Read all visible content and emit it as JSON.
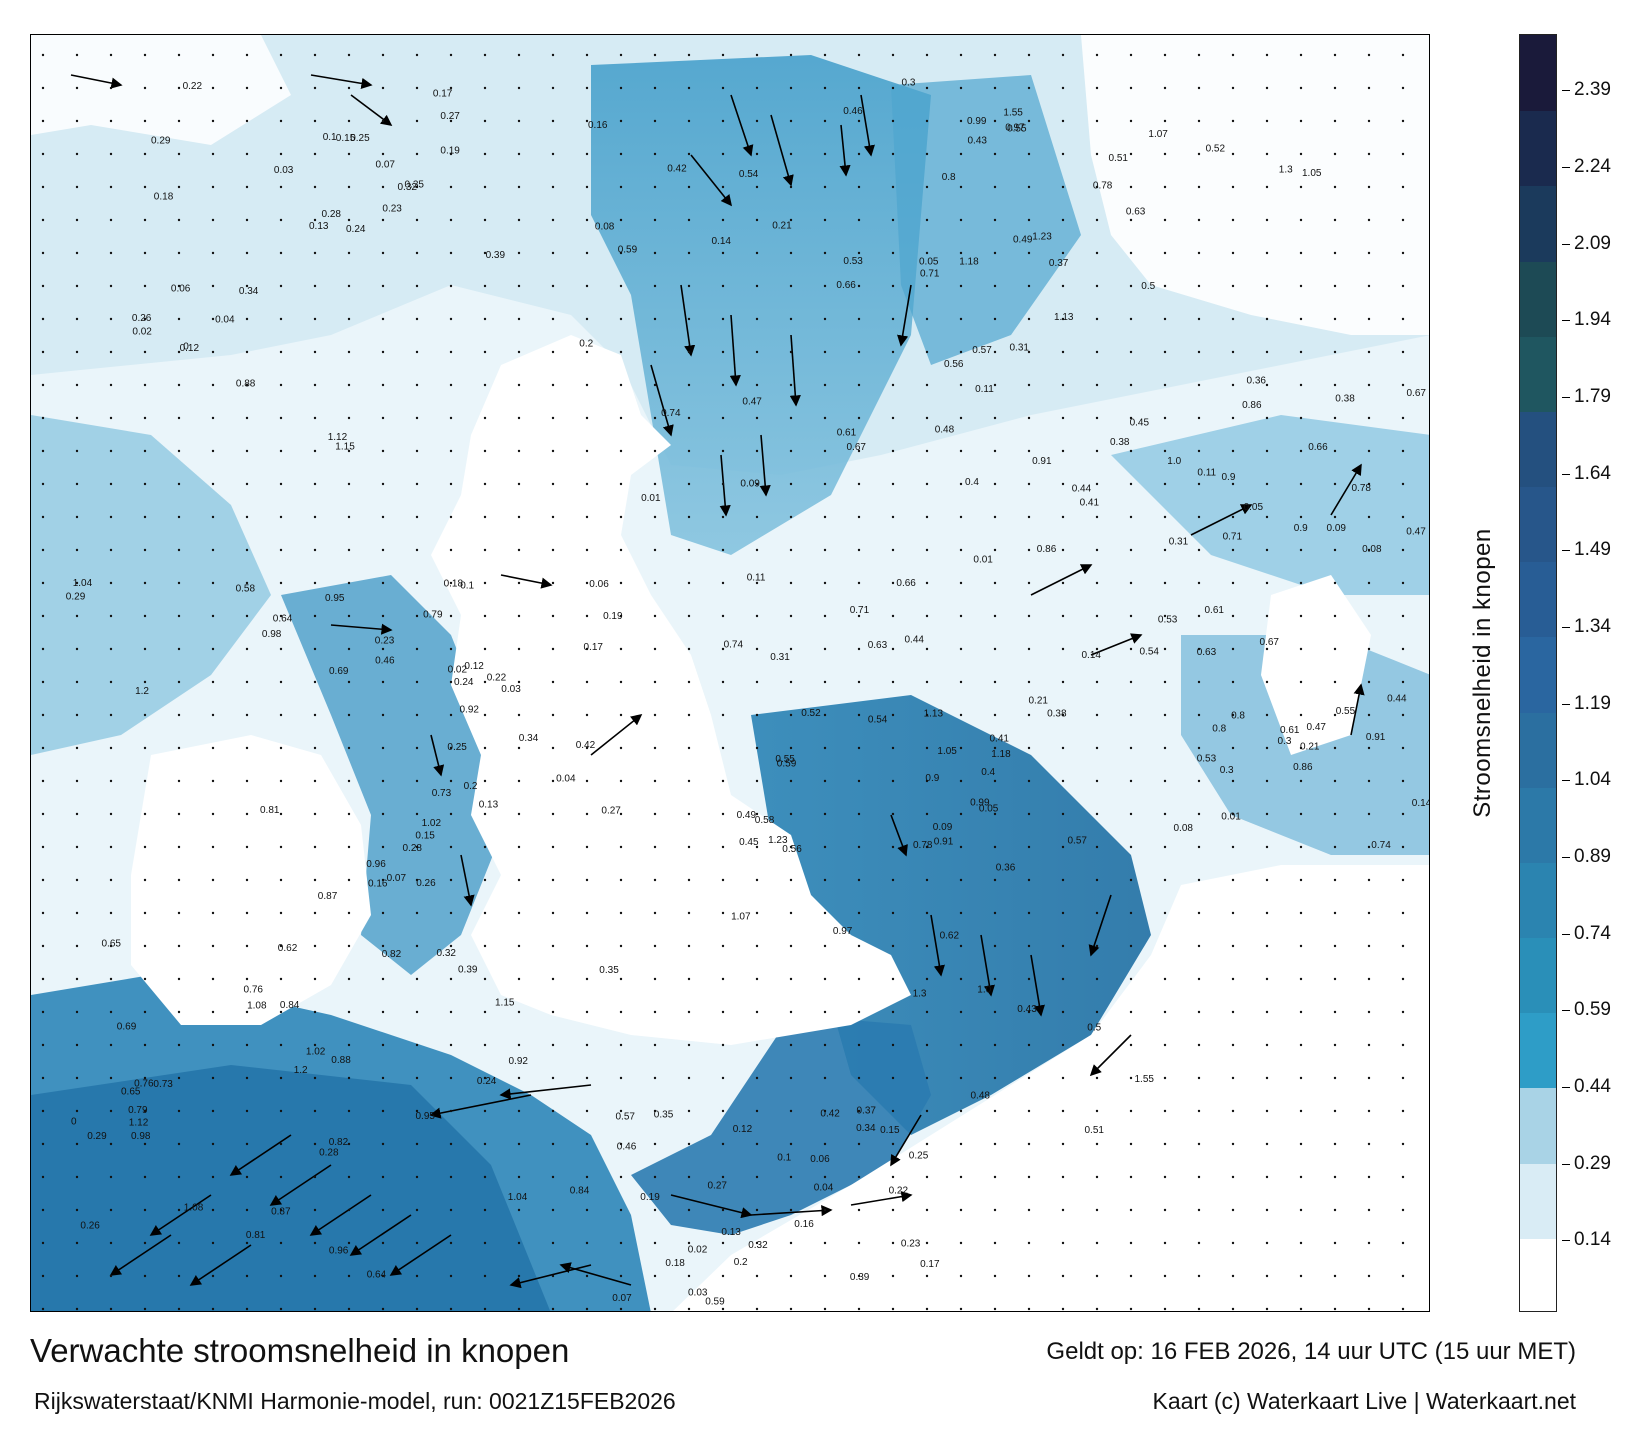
{
  "title": "Verwachte stroomsnelheid in knopen",
  "subtitle": "Rijkswaterstaat/KNMI Harmonie-model, run: 0021Z15FEB2026",
  "valid_time": "Geldt op: 16 FEB 2026, 14 uur UTC (15 uur MET)",
  "credits": "Kaart (c) Waterkaart Live | Waterkaart.net",
  "colorbar": {
    "title": "Stroomsnelheid in knopen",
    "unit": "knopen",
    "min": 0,
    "max": 2.5,
    "tick_labels": [
      "0.14",
      "0.29",
      "0.44",
      "0.59",
      "0.74",
      "0.89",
      "1.04",
      "1.19",
      "1.34",
      "1.49",
      "1.64",
      "1.79",
      "1.94",
      "2.09",
      "2.24",
      "2.39"
    ],
    "tick_values": [
      0.14,
      0.29,
      0.44,
      0.59,
      0.74,
      0.89,
      1.04,
      1.19,
      1.34,
      1.49,
      1.64,
      1.79,
      1.94,
      2.09,
      2.24,
      2.39
    ],
    "colors": [
      "#ffffff",
      "#d9ecf5",
      "#a9d3e6",
      "#2e9dc7",
      "#2a8fb8",
      "#2b84b0",
      "#2c79a8",
      "#2b6fa0",
      "#2a66a0",
      "#285d95",
      "#27568a",
      "#24507f",
      "#1f5660",
      "#1d4a55",
      "#1b3a5c",
      "#1a2a4e",
      "#1a1a3a"
    ],
    "colors_note": "colour bins from bottom to top"
  },
  "map": {
    "land_color": "#ffffff",
    "water_low_color": "#e6f3f9",
    "water_mid_color": "#5fb3d6",
    "water_high_color": "#1f6fa3",
    "arrow_color": "#000000",
    "sample_values": [
      {
        "v": "0.24"
      },
      {
        "v": "0.29"
      },
      {
        "v": "0.28"
      },
      {
        "v": "0.26"
      },
      {
        "v": "0.32"
      },
      {
        "v": "0.34"
      },
      {
        "v": "0.17"
      },
      {
        "v": "0.25"
      },
      {
        "v": "0.27"
      },
      {
        "v": "0.23"
      },
      {
        "v": "0.22"
      },
      {
        "v": "0.2"
      },
      {
        "v": "0.18"
      },
      {
        "v": "0.16"
      },
      {
        "v": "0.13"
      },
      {
        "v": "0.19"
      },
      {
        "v": "0.12"
      },
      {
        "v": "0.1"
      },
      {
        "v": "0.07"
      },
      {
        "v": "0.06"
      },
      {
        "v": "0.03"
      },
      {
        "v": "0.02"
      },
      {
        "v": "0.04"
      },
      {
        "v": "0.15"
      },
      {
        "v": "0.35"
      },
      {
        "v": "0.39"
      },
      {
        "v": "0.42"
      },
      {
        "v": "0.46"
      },
      {
        "v": "0.59"
      },
      {
        "v": "0.57"
      },
      {
        "v": "0.63"
      },
      {
        "v": "0.66"
      },
      {
        "v": "0.61"
      },
      {
        "v": "0.53"
      },
      {
        "v": "0.54"
      },
      {
        "v": "0.55"
      },
      {
        "v": "0.47"
      },
      {
        "v": "0.44"
      },
      {
        "v": "0.38"
      },
      {
        "v": "0.31"
      },
      {
        "v": "0.3"
      },
      {
        "v": "0.21"
      },
      {
        "v": "0.14"
      },
      {
        "v": "0.11"
      },
      {
        "v": "0.09"
      },
      {
        "v": "0.08"
      },
      {
        "v": "0.05"
      },
      {
        "v": "0.01"
      },
      {
        "v": "0.67"
      },
      {
        "v": "0.71"
      },
      {
        "v": "0.74"
      },
      {
        "v": "0.78"
      },
      {
        "v": "0.8"
      },
      {
        "v": "0.86"
      },
      {
        "v": "0.9"
      },
      {
        "v": "0.91"
      },
      {
        "v": "0.97"
      },
      {
        "v": "0.99"
      },
      {
        "v": "1.0"
      },
      {
        "v": "1.05"
      },
      {
        "v": "1.07"
      },
      {
        "v": "1.13"
      },
      {
        "v": "1.18"
      },
      {
        "v": "1.23"
      },
      {
        "v": "1.3"
      },
      {
        "v": "1.55"
      },
      {
        "v": "0.52"
      },
      {
        "v": "0.51"
      },
      {
        "v": "0.5"
      },
      {
        "v": "0.48"
      },
      {
        "v": "0.45"
      },
      {
        "v": "0.41"
      },
      {
        "v": "0.36"
      },
      {
        "v": "0.37"
      },
      {
        "v": "0.4"
      },
      {
        "v": "0.43"
      },
      {
        "v": "0.49"
      },
      {
        "v": "0.56"
      },
      {
        "v": "0.58"
      },
      {
        "v": "0.62"
      },
      {
        "v": "0.64"
      },
      {
        "v": "0.65"
      },
      {
        "v": "0.69"
      },
      {
        "v": "0.73"
      },
      {
        "v": "0.76"
      },
      {
        "v": "0.79"
      },
      {
        "v": "0.81"
      },
      {
        "v": "0.82"
      },
      {
        "v": "0.84"
      },
      {
        "v": "0.87"
      },
      {
        "v": "0.88"
      },
      {
        "v": "0.92"
      },
      {
        "v": "0.95"
      },
      {
        "v": "0.96"
      },
      {
        "v": "0.98"
      },
      {
        "v": "1.02"
      },
      {
        "v": "1.04"
      },
      {
        "v": "1.08"
      },
      {
        "v": "1.12"
      },
      {
        "v": "1.15"
      },
      {
        "v": "1.2"
      },
      {
        "v": "0"
      }
    ]
  }
}
